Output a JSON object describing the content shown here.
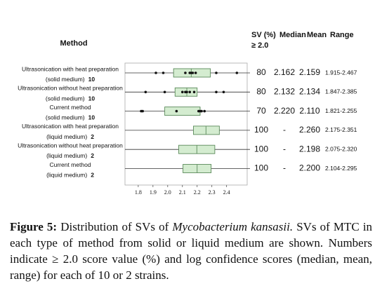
{
  "chart_data": {
    "type": "box",
    "xlim": [
      1.71,
      2.54
    ],
    "xticks": [
      1.8,
      1.9,
      {
        "value": 2.0,
        "label": "2.0"
      },
      2.1,
      2.2,
      2.3,
      2.4
    ],
    "box_color": "#d4ecd0",
    "rows": [
      {
        "method": "Ultrasonication with heat preparation",
        "medium": "(solid medium)",
        "n": "10",
        "q1": 2.04,
        "median": 2.16,
        "q3": 2.29,
        "points": [
          1.92,
          1.97,
          2.12,
          2.15,
          2.16,
          2.17,
          2.19,
          2.33,
          2.47
        ]
      },
      {
        "method": "Ultrasonication without heat preparation",
        "medium": "(solid medium)",
        "n": "10",
        "q1": 2.05,
        "median": 2.13,
        "q3": 2.2,
        "points": [
          1.85,
          1.98,
          2.1,
          2.12,
          2.13,
          2.15,
          2.18,
          2.33,
          2.38
        ]
      },
      {
        "method": "Current method",
        "medium": "(solid medium)",
        "n": "10",
        "q1": 1.98,
        "median": 2.22,
        "q3": 2.22,
        "points": [
          1.82,
          1.83,
          2.06,
          2.21,
          2.22,
          2.23,
          2.25
        ]
      },
      {
        "method": "Ultrasonication with heat preparation",
        "medium": "(liquid medium)",
        "n": "2",
        "q1": 2.175,
        "median": 2.26,
        "q3": 2.351,
        "points": []
      },
      {
        "method": "Ultrasonication without heat preparation",
        "medium": "(liquid medium)",
        "n": "2",
        "q1": 2.075,
        "median": 2.198,
        "q3": 2.32,
        "points": []
      },
      {
        "method": "Current method",
        "medium": "(liquid medium)",
        "n": "2",
        "q1": 2.104,
        "median": 2.2,
        "q3": 2.295,
        "points": []
      }
    ]
  },
  "table": {
    "method_header": "Method",
    "sv_header": "SV (%)",
    "sv_sub": "≥ 2.0",
    "headers": [
      "Median",
      "Mean",
      "Range"
    ],
    "rows": [
      [
        "80",
        "2.162",
        "2.159",
        "1.915-2.467"
      ],
      [
        "80",
        "2.132",
        "2.134",
        "1.847-2.385"
      ],
      [
        "70",
        "2.220",
        "2.110",
        "1.821-2.255"
      ],
      [
        "100",
        "-",
        "2.260",
        "2.175-2.351"
      ],
      [
        "100",
        "-",
        "2.198",
        "2.075-2.320"
      ],
      [
        "100",
        "-",
        "2.200",
        "2.104-2.295"
      ]
    ]
  },
  "caption": {
    "label": "Figure 5:",
    "text1": "Distribution of SVs of",
    "species": "Mycobacterium kansasii.",
    "text2": "SVs of MTC in each type of method from solid or liquid medium are shown. Numbers indicate ≥ 2.0 score value (%) and log confidence scores (median, mean, range) for each of 10 or 2 strains."
  }
}
